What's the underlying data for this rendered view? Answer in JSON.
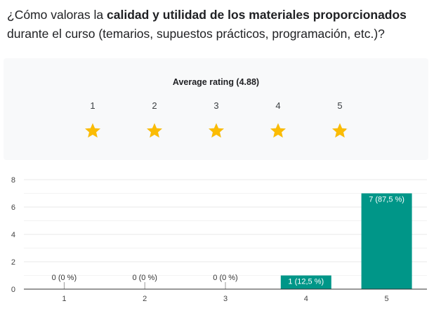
{
  "question": {
    "pre": "¿Cómo valoras la ",
    "bold": "calidad y utilidad de los materiales proporcionados",
    "post": " durante el curso (temarios, supuestos prácticos, programación, etc.)?"
  },
  "rating": {
    "label": "Average rating (4.88)",
    "value": 4.88,
    "scale": [
      "1",
      "2",
      "3",
      "4",
      "5"
    ],
    "star_color": "#fbbc04",
    "empty_star_color": "#d0d0d0"
  },
  "chart_data": {
    "type": "bar",
    "categories": [
      "1",
      "2",
      "3",
      "4",
      "5"
    ],
    "values": [
      0,
      0,
      0,
      1,
      7
    ],
    "data_labels": [
      "0 (0 %)",
      "0 (0 %)",
      "0 (0 %)",
      "1 (12,5 %)",
      "7 (87,5 %)"
    ],
    "ylim": [
      0,
      8
    ],
    "yticks": [
      "0",
      "2",
      "4",
      "6",
      "8"
    ],
    "grid": true,
    "bar_color": "#009688"
  }
}
